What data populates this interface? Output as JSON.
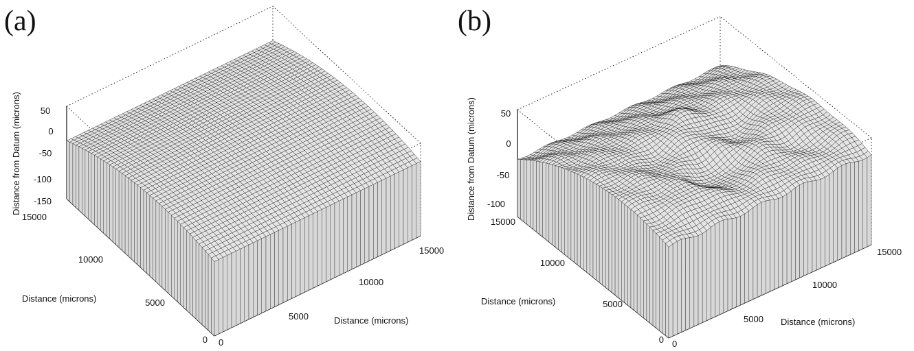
{
  "chart_data": [
    {
      "type": "surface",
      "panel_label": "(a)",
      "xlabel": "Distance (microns)",
      "ylabel": "Distance (microns)",
      "zlabel": "Distance from Datum (microns)",
      "x_ticks": [
        "0",
        "5000",
        "10000",
        "15000"
      ],
      "y_ticks": [
        "0",
        "5000",
        "10000",
        "15000"
      ],
      "z_ticks": [
        "50",
        "0",
        "-50",
        "-100",
        "-150"
      ],
      "xlim": [
        0,
        15000
      ],
      "ylim": [
        0,
        15000
      ],
      "zlim": [
        -150,
        50
      ],
      "grid": true,
      "surface": "smooth dome-shaped (cylindrical) surface",
      "z_range_estimate": [
        -50,
        25
      ]
    },
    {
      "type": "surface",
      "panel_label": "(b)",
      "xlabel": "Distance (microns)",
      "ylabel": "Distance (microns)",
      "zlabel": "Distance from Datum (microns)",
      "x_ticks": [
        "0",
        "5000",
        "10000",
        "15000"
      ],
      "y_ticks": [
        "0",
        "5000",
        "10000",
        "15000"
      ],
      "z_ticks": [
        "50",
        "0",
        "-50",
        "-100"
      ],
      "xlim": [
        0,
        15000
      ],
      "ylim": [
        0,
        15000
      ],
      "zlim": [
        -100,
        50
      ],
      "grid": true,
      "surface": "dome-shaped surface with irregular valleys and ridges",
      "z_range_estimate": [
        -60,
        40
      ]
    }
  ]
}
